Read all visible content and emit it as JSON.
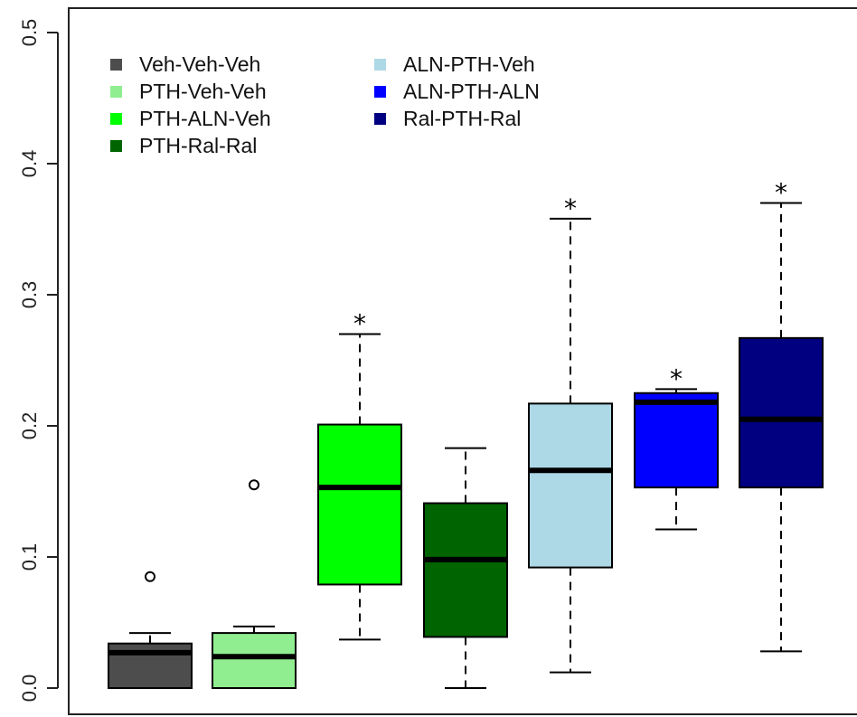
{
  "chart_data": {
    "type": "boxplot",
    "title": "",
    "xlabel": "",
    "ylabel": "",
    "ylim": [
      0,
      0.5
    ],
    "yticks": [
      0.0,
      0.1,
      0.2,
      0.3,
      0.4,
      0.5
    ],
    "ytick_labels": [
      "0.0",
      "0.1",
      "0.2",
      "0.3",
      "0.4",
      "0.5"
    ],
    "legend_position": "top-left",
    "groups": [
      {
        "name": "Veh-Veh-Veh",
        "color": "#4d4d4d",
        "whisker_low": 0.0,
        "q1": 0.0,
        "median": 0.027,
        "q3": 0.034,
        "whisker_high": 0.042,
        "outliers": [
          0.085
        ],
        "significant": false
      },
      {
        "name": "PTH-Veh-Veh",
        "color": "#90ee90",
        "whisker_low": 0.0,
        "q1": 0.0,
        "median": 0.024,
        "q3": 0.042,
        "whisker_high": 0.047,
        "outliers": [
          0.155
        ],
        "significant": false
      },
      {
        "name": "PTH-ALN-Veh",
        "color": "#00ff00",
        "whisker_low": 0.037,
        "q1": 0.079,
        "median": 0.153,
        "q3": 0.201,
        "whisker_high": 0.27,
        "outliers": [],
        "significant": true
      },
      {
        "name": "PTH-Ral-Ral",
        "color": "#006400",
        "whisker_low": 0.0,
        "q1": 0.039,
        "median": 0.098,
        "q3": 0.141,
        "whisker_high": 0.183,
        "outliers": [],
        "significant": false
      },
      {
        "name": "ALN-PTH-Veh",
        "color": "#add8e6",
        "whisker_low": 0.012,
        "q1": 0.092,
        "median": 0.166,
        "q3": 0.217,
        "whisker_high": 0.358,
        "outliers": [],
        "significant": true
      },
      {
        "name": "ALN-PTH-ALN",
        "color": "#0000ff",
        "whisker_low": 0.121,
        "q1": 0.153,
        "median": 0.218,
        "q3": 0.225,
        "whisker_high": 0.228,
        "outliers": [],
        "significant": true
      },
      {
        "name": "Ral-PTH-Ral",
        "color": "#000080",
        "whisker_low": 0.028,
        "q1": 0.153,
        "median": 0.205,
        "q3": 0.267,
        "whisker_high": 0.37,
        "outliers": [],
        "significant": true
      }
    ],
    "significance_marker": "*"
  }
}
